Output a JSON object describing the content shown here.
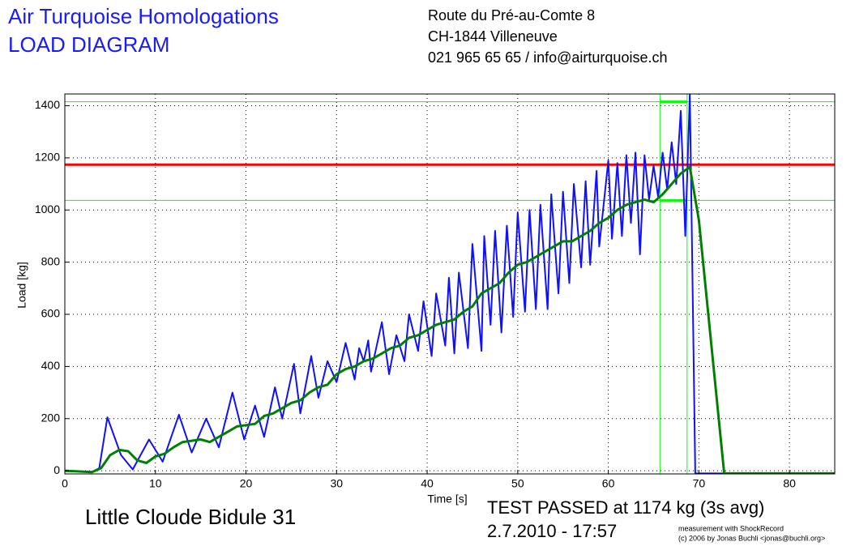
{
  "chart_data": {
    "type": "line",
    "title": "Air Turquoise Homologations",
    "subtitle": "LOAD DIAGRAM",
    "address": [
      "Route du Pré-au-Comte 8",
      "CH-1844 Villeneuve",
      "021 965 65 65 / info@airturquoise.ch"
    ],
    "specimen": "Little Cloude Bidule 31",
    "result": "TEST PASSED at 1174 kg (3s avg)",
    "date": "2.7.2010 - 17:57",
    "credits": [
      "measurement with ShockRecord",
      "(c) 2006 by Jonas Buchli <jonas@buchli.org>"
    ],
    "x_label": "Time [s]",
    "y_label": "Load [kg]",
    "xlim": [
      0,
      85
    ],
    "ylim": [
      -12,
      1445
    ],
    "xticks": [
      0,
      10,
      20,
      30,
      40,
      50,
      60,
      70,
      80
    ],
    "yticks": [
      0,
      200,
      400,
      600,
      800,
      1000,
      1200,
      1400
    ],
    "grid": true,
    "threshold": 1174,
    "threshold_color": "#ff0000",
    "bounds": [
      1037,
      1415
    ],
    "window": [
      65.7,
      68.7
    ],
    "bounds_color": "#00ff00",
    "series": [
      {
        "name": "Load",
        "color": "#1010ff",
        "width": 2,
        "x": [
          0,
          3,
          3.8,
          4.7,
          6.2,
          7.5,
          9.3,
          10.8,
          12.6,
          14.0,
          15.6,
          17.0,
          18.5,
          19.8,
          21.0,
          22.0,
          23.2,
          24.0,
          25.3,
          26.0,
          27.2,
          28.0,
          29.0,
          30.0,
          31.0,
          32.0,
          32.5,
          33.0,
          33.5,
          33.8,
          35.0,
          35.8,
          36.6,
          37.5,
          38.0,
          39.0,
          39.6,
          40.5,
          41.0,
          42.0,
          42.4,
          43.0,
          43.5,
          44.5,
          45.0,
          46.0,
          46.3,
          47.0,
          47.5,
          48.2,
          48.8,
          49.5,
          50.0,
          50.8,
          51.3,
          52.0,
          52.5,
          53.3,
          53.7,
          54.5,
          55.0,
          55.7,
          56.2,
          57.0,
          57.5,
          58.0,
          58.7,
          59.0,
          60.0,
          60.4,
          61.0,
          61.5,
          62.0,
          62.5,
          63.0,
          63.5,
          64.0,
          64.5,
          65.0,
          65.5,
          66.0,
          66.5,
          67.0,
          67.5,
          68.0,
          68.5,
          69.0,
          69.6,
          85
        ],
        "values": [
          0,
          -5,
          10,
          205,
          60,
          5,
          120,
          35,
          215,
          70,
          200,
          90,
          300,
          120,
          250,
          130,
          320,
          200,
          410,
          220,
          440,
          280,
          420,
          340,
          490,
          350,
          470,
          420,
          500,
          380,
          570,
          370,
          520,
          420,
          600,
          460,
          650,
          440,
          680,
          480,
          740,
          450,
          760,
          470,
          870,
          460,
          900,
          560,
          920,
          530,
          940,
          590,
          990,
          610,
          1000,
          620,
          1020,
          620,
          1060,
          680,
          1070,
          720,
          1100,
          780,
          1110,
          790,
          1150,
          860,
          1190,
          890,
          1180,
          900,
          1210,
          950,
          1220,
          830,
          1210,
          1040,
          1170,
          1050,
          1220,
          1080,
          1260,
          1100,
          1380,
          900,
          1445,
          -10,
          -10
        ]
      },
      {
        "name": "3s avg",
        "color": "#008000",
        "width": 3,
        "x": [
          0,
          3,
          4,
          5,
          6,
          7,
          8,
          9,
          10,
          11,
          12,
          13,
          14,
          15,
          16,
          17,
          18,
          19,
          20,
          21,
          22,
          23,
          24,
          25,
          26,
          27,
          28,
          29,
          30,
          31,
          32,
          33,
          34,
          35,
          36,
          37,
          38,
          39,
          40,
          41,
          42,
          43,
          44,
          45,
          46,
          47,
          48,
          49,
          50,
          51,
          52,
          53,
          54,
          55,
          56,
          57,
          58,
          59,
          60,
          61,
          62,
          63,
          64,
          65,
          66,
          67,
          68,
          69,
          70,
          72.8,
          85
        ],
        "values": [
          0,
          -5,
          10,
          60,
          80,
          75,
          40,
          30,
          55,
          65,
          90,
          110,
          115,
          120,
          110,
          130,
          150,
          170,
          175,
          180,
          210,
          220,
          240,
          260,
          270,
          300,
          320,
          330,
          370,
          390,
          400,
          420,
          430,
          450,
          470,
          480,
          510,
          520,
          540,
          560,
          570,
          580,
          610,
          630,
          680,
          700,
          720,
          760,
          790,
          800,
          820,
          840,
          860,
          880,
          880,
          900,
          920,
          950,
          970,
          1000,
          1020,
          1030,
          1040,
          1030,
          1060,
          1100,
          1140,
          1165,
          960,
          -10,
          -10
        ]
      }
    ]
  }
}
